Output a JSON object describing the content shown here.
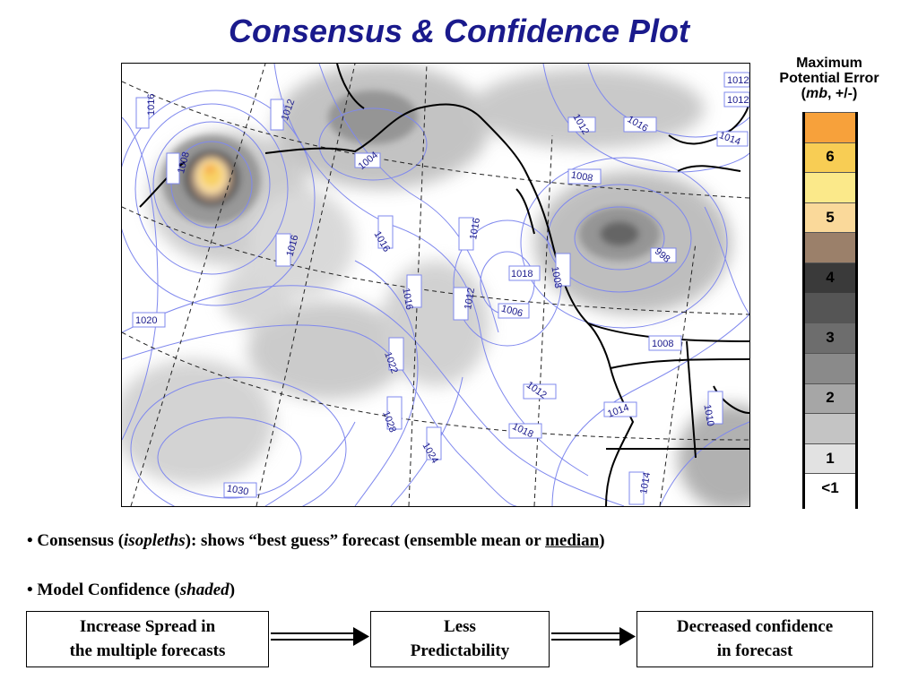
{
  "title": "Consensus & Confidence Plot",
  "legend": {
    "title_line1": "Maximum",
    "title_line2": "Potential Error",
    "title_line3_unit": "mb",
    "title_line3_rest": ", +/-)",
    "title_line3_open": "(",
    "scale": [
      {
        "label": "",
        "color": "#f7a13b"
      },
      {
        "label": "6",
        "color": "#f8cd54"
      },
      {
        "label": "",
        "color": "#fbe98a"
      },
      {
        "label": "5",
        "color": "#fad99a"
      },
      {
        "label": "",
        "color": "#9b806a"
      },
      {
        "label": "4",
        "color": "#3a3a3a"
      },
      {
        "label": "",
        "color": "#555555"
      },
      {
        "label": "3",
        "color": "#6d6d6d"
      },
      {
        "label": "",
        "color": "#8a8a8a"
      },
      {
        "label": "2",
        "color": "#a6a6a6"
      },
      {
        "label": "",
        "color": "#c4c4c4"
      },
      {
        "label": "1",
        "color": "#e2e2e2"
      },
      {
        "label": "<1",
        "color": "#ffffff"
      }
    ]
  },
  "map": {
    "isopleth_labels": [
      "1016",
      "1012",
      "1008",
      "1012",
      "1016",
      "1012",
      "1014",
      "1008",
      "1016",
      "1016",
      "1004",
      "1016",
      "1008",
      "998",
      "1016",
      "1018",
      "1012",
      "1020",
      "1022",
      "1006",
      "1008",
      "1012",
      "1010",
      "1014",
      "1028",
      "1024",
      "1018",
      "1030",
      "1014",
      "1012"
    ]
  },
  "bullets": {
    "b1_pre": "• Consensus (",
    "b1_italic": "isopleths",
    "b1_mid": "): shows “best guess” forecast  (ensemble mean or ",
    "b1_underline": "median",
    "b1_post": ")",
    "b2_pre": "• Model Confidence (",
    "b2_italic": "shaded",
    "b2_post": ")"
  },
  "flow": {
    "box1_line1": "Increase Spread in",
    "box1_line2": "the multiple forecasts",
    "box2_line1": "Less",
    "box2_line2": "Predictability",
    "box3_line1": "Decreased confidence",
    "box3_line2": "in forecast"
  }
}
